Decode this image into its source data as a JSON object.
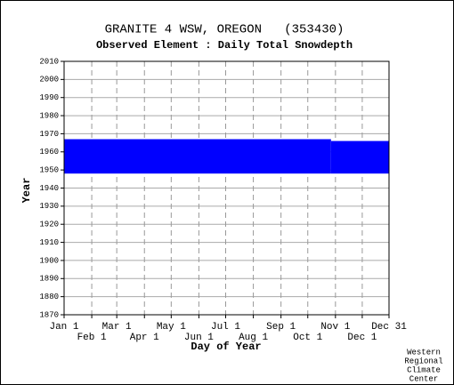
{
  "chart_data": {
    "type": "availability",
    "title": "GRANITE 4 WSW, OREGON   (353430)",
    "subtitle": "Observed Element : Daily Total Snowdepth",
    "xlabel": "Day of Year",
    "ylabel": "Year",
    "credit": [
      "Western",
      "Regional",
      "Climate",
      "Center"
    ],
    "color": "#0000ff",
    "grid": true,
    "xlim": [
      1,
      365
    ],
    "xticks": [
      {
        "value": 1,
        "label": "Jan 1"
      },
      {
        "value": 32,
        "label": "Feb 1"
      },
      {
        "value": 60,
        "label": "Mar 1"
      },
      {
        "value": 91,
        "label": "Apr 1"
      },
      {
        "value": 121,
        "label": "May 1"
      },
      {
        "value": 152,
        "label": "Jun 1"
      },
      {
        "value": 182,
        "label": "Jul 1"
      },
      {
        "value": 213,
        "label": "Aug 1"
      },
      {
        "value": 244,
        "label": "Sep 1"
      },
      {
        "value": 274,
        "label": "Oct 1"
      },
      {
        "value": 305,
        "label": "Nov 1"
      },
      {
        "value": 335,
        "label": "Dec 1"
      },
      {
        "value": 365,
        "label": "Dec 31"
      }
    ],
    "ylim": [
      1870,
      2010
    ],
    "yticks": [
      1870,
      1880,
      1890,
      1900,
      1910,
      1920,
      1930,
      1940,
      1950,
      1960,
      1970,
      1980,
      1990,
      2000,
      2010
    ],
    "bands": [
      {
        "x": [
          1,
          300
        ],
        "y": [
          1948,
          1967
        ]
      },
      {
        "x": [
          300,
          365
        ],
        "y": [
          1948,
          1966
        ]
      }
    ]
  }
}
